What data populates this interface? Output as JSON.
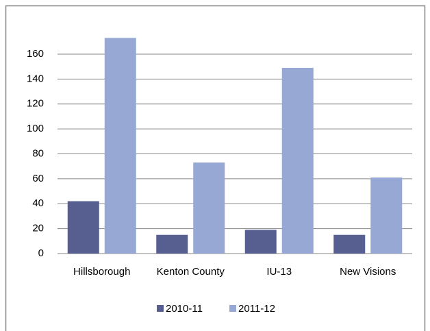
{
  "chart_data": {
    "type": "bar",
    "categories": [
      "Hillsborough",
      "Kenton County",
      "IU-13",
      "New Visions"
    ],
    "series": [
      {
        "name": "2010-11",
        "color": "#575f91",
        "values": [
          42,
          15,
          19,
          15
        ]
      },
      {
        "name": "2011-12",
        "color": "#96a8d3",
        "values": [
          173,
          73,
          149,
          61
        ]
      }
    ],
    "ylim": [
      0,
      180
    ],
    "yticks": [
      0,
      20,
      40,
      60,
      80,
      100,
      120,
      140,
      160
    ],
    "grid": true,
    "legend": "bottom"
  }
}
